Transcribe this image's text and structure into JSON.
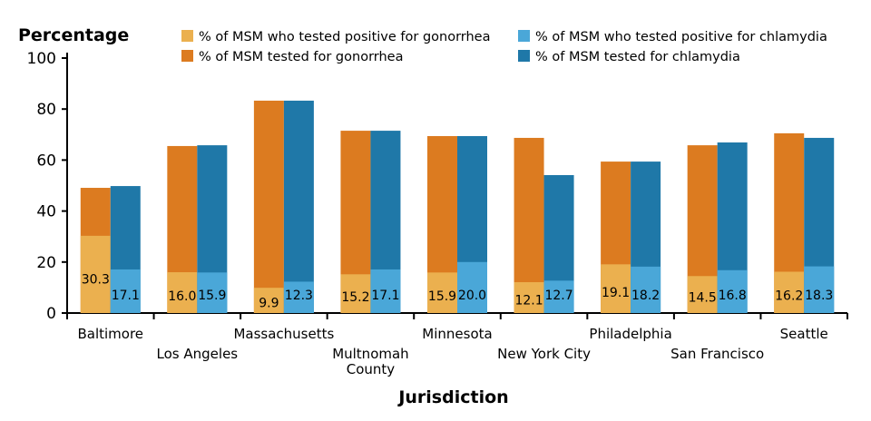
{
  "chart_data": {
    "type": "bar",
    "ylabel": "Percentage",
    "xlabel": "Jurisdiction",
    "ylim": [
      0,
      100
    ],
    "yticks": [
      "0",
      "20",
      "40",
      "60",
      "80",
      "100"
    ],
    "grid": false,
    "legend_position": "top",
    "categories": [
      "Baltimore",
      "Los Angeles",
      "Massachusetts",
      "Multnomah County",
      "Minnesota",
      "New York City",
      "Philadelphia",
      "San Francisco",
      "Seattle"
    ],
    "series": [
      {
        "name": "% of MSM who tested positive for gonorrhea",
        "color": "#ebb04f",
        "values": [
          30.3,
          16.0,
          9.9,
          15.2,
          15.9,
          12.1,
          19.1,
          14.5,
          16.2
        ]
      },
      {
        "name": "% of MSM tested for gonorrhea",
        "color": "#dc7b20",
        "values": [
          49.1,
          65.5,
          83.3,
          71.5,
          69.4,
          68.7,
          59.4,
          65.8,
          70.5
        ]
      },
      {
        "name": "% of MSM who tested positive for chlamydia",
        "color": "#4aa7d8",
        "values": [
          17.1,
          15.9,
          12.3,
          17.1,
          20.0,
          12.7,
          18.2,
          16.8,
          18.3
        ]
      },
      {
        "name": "% of MSM tested for chlamydia",
        "color": "#1f78a8",
        "values": [
          49.8,
          65.8,
          83.3,
          71.5,
          69.4,
          54.1,
          59.4,
          66.9,
          68.7
        ]
      }
    ],
    "data_labels": {
      "gonorrhea_positive": [
        "30.3",
        "16.0",
        "9.9",
        "15.2",
        "15.9",
        "12.1",
        "19.1",
        "14.5",
        "16.2"
      ],
      "chlamydia_positive": [
        "17.1",
        "15.9",
        "12.3",
        "17.1",
        "20.0",
        "12.7",
        "18.2",
        "16.8",
        "18.3"
      ]
    }
  }
}
